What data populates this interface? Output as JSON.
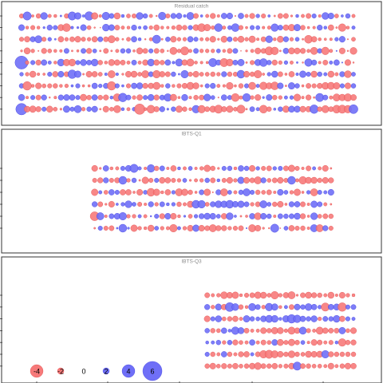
{
  "chart_data": {
    "type": "scatter",
    "description_kind": "bubble residual plot",
    "colors": {
      "positive": "#6f6ff7",
      "negative": "#f77a7a",
      "stroke_positive": "#4040e0",
      "stroke_negative": "#e05050"
    },
    "legend": {
      "placement": "bottom-left",
      "entries": [
        {
          "label": "-4",
          "value": -4
        },
        {
          "label": "-2",
          "value": -2
        },
        {
          "label": "0",
          "value": 0
        },
        {
          "label": "2",
          "value": 2
        },
        {
          "label": "4",
          "value": 4
        },
        {
          "label": "6",
          "value": 6
        }
      ]
    },
    "panels": [
      {
        "title": "Residual catch",
        "year_start": 1,
        "year_end": 60,
        "ages": 9,
        "residuals": [
          [
            -1.4,
            2.6,
            -0.8,
            -1.5,
            2.2,
            -1.1,
            -1.0,
            0.6,
            -1.5,
            2.6,
            2.1,
            0.8,
            2.7,
            -2.1,
            -0.9,
            2.4,
            1.6,
            -2.0,
            1.0,
            -1.3,
            -1.4,
            2.2,
            1.5,
            -1.1,
            -0.5,
            2.4,
            -1.4,
            1.7,
            1.8,
            0.9,
            2.3,
            -1.6,
            0.8,
            -1.1,
            -1.7,
            -0.9,
            1.8,
            1.9,
            -0.4,
            1.8,
            -1.1,
            -1.7,
            1.2,
            -1.4,
            0.8,
            -0.6,
            -1.6,
            -1.6,
            -0.7,
            1.0,
            -1.1,
            -1.6,
            1.4,
            -0.9,
            2.2,
            1.9,
            -1.3,
            0.8,
            1.5,
            -1.1
          ],
          [
            1.9,
            -1.0,
            -1.4,
            -1.0,
            0.7,
            1.7,
            1.4,
            -2.0,
            -2.5,
            0.9,
            0.7,
            1.9,
            -1.3,
            -0.5,
            -0.3,
            2.2,
            1.9,
            -1.6,
            -1.1,
            -1.0,
            1.7,
            0.9,
            1.3,
            -1.2,
            -1.8,
            -1.0,
            -0.9,
            -1.2,
            -1.8,
            -1.5,
            1.4,
            -1.9,
            -2.5,
            -2.1,
            -1.2,
            2.5,
            -1.1,
            1.3,
            2.5,
            -1.4,
            -0.8,
            1.4,
            1.3,
            -0.9,
            -1.1,
            2.4,
            1.6,
            -1.8,
            -2.1,
            2.1,
            -1.5,
            -0.8,
            -0.9,
            1.7,
            1.0,
            -1.8,
            -0.6,
            -2.4,
            -1.0,
            1.1
          ],
          [
            -1.4,
            -1.8,
            1.7,
            2.3,
            -1.4,
            1.2,
            0.6,
            -1.8,
            -1.2,
            -1.6,
            -1.9,
            -1.4,
            -1.2,
            -1.8,
            1.6,
            -1.6,
            -2.3,
            -1.2,
            -0.6,
            -1.3,
            1.8,
            1.0,
            -0.5,
            -1.1,
            2.6,
            -0.6,
            1.5,
            -1.9,
            -1.2,
            -1.2,
            1.8,
            1.4,
            -1.1,
            -1.2,
            -1.9,
            -0.7,
            -2.0,
            1.6,
            -1.4,
            -2.0,
            -1.2,
            -2.1,
            -0.9,
            -1.6,
            2.2,
            -1.0,
            -2.0,
            1.7,
            -1.2,
            1.3,
            -0.6,
            -2.5,
            -1.8,
            -1.0,
            -0.8,
            -0.9,
            1.2,
            1.9,
            -0.4,
            -1.3
          ],
          [
            -0.7,
            -2.0,
            -1.2,
            -0.4,
            -1.7,
            -1.3,
            -1.0,
            -0.9,
            1.6,
            -0.6,
            -0.8,
            1.6,
            -1.7,
            1.3,
            -0.6,
            -1.6,
            -0.6,
            -1.1,
            1.5,
            1.5,
            -0.8,
            -2.0,
            -1.6,
            1.4,
            -1.6,
            -1.3,
            -0.5,
            -2.3,
            -1.2,
            -2.6,
            -1.1,
            1.6,
            -1.2,
            -1.2,
            -1.2,
            1.3,
            -1.0,
            -1.6,
            1.6,
            -0.3,
            -0.7,
            -1.1,
            -1.9,
            -1.6,
            -2.6,
            -2.4,
            -0.6,
            1.8,
            -2.0,
            -1.9,
            -1.7,
            -1.1,
            -2.3,
            1.5,
            -2.4,
            -1.1,
            0.4,
            -1.9,
            -0.5,
            -2.2
          ],
          [
            4.1,
            -1.2,
            1.4,
            -1.7,
            1.8,
            1.1,
            -1.0,
            2.2,
            -2.1,
            -2.2,
            1.4,
            2.0,
            1.6,
            2.2,
            -1.5,
            -1.0,
            -2.0,
            -1.8,
            -1.6,
            -1.1,
            1.6,
            -1.1,
            -1.8,
            2.2,
            -1.8,
            -1.5,
            1.8,
            0.9,
            2.3,
            -1.8,
            -2.3,
            -1.0,
            -0.9,
            -0.8,
            2.6,
            1.7,
            -2.6,
            -2.2,
            1.6,
            2.1,
            -0.6,
            -1.4,
            2.0,
            2.5,
            1.5,
            -1.7,
            -1.2,
            1.2,
            -1.1,
            0.6,
            -0.5,
            2.4,
            1.7,
            -0.9,
            -1.6,
            1.1,
            1.8,
            0.4,
            -1.9,
            -0.5
          ],
          [
            1.2,
            -1.2,
            -2.0,
            -0.9,
            -0.8,
            1.4,
            -1.8,
            1.9,
            -1.6,
            2.7,
            2.1,
            -0.6,
            -1.9,
            -1.8,
            -1.3,
            0.9,
            -2.3,
            0.9,
            -0.7,
            -1.9,
            -2.0,
            -1.3,
            -2.3,
            1.6,
            -2.4,
            -1.8,
            -1.6,
            1.5,
            0.6,
            2.4,
            -1.4,
            -1.9,
            -1.3,
            -1.3,
            -1.5,
            -1.2,
            1.7,
            -1.5,
            -1.4,
            2.5,
            -1.9,
            -1.5,
            -2.4,
            -0.8,
            1.2,
            2.0,
            -1.6,
            -0.8,
            -1.8,
            0.9,
            2.1,
            1.4,
            -2.0,
            1.5,
            1.1,
            -2.0,
            -1.1,
            1.7,
            -2.2,
            1.3
          ],
          [
            1.5,
            -2.7,
            -1.0,
            -1.9,
            -1.3,
            -1.4,
            -1.5,
            -1.0,
            -1.2,
            0.8,
            1.4,
            -0.8,
            -0.8,
            1.8,
            1.2,
            1.7,
            -2.7,
            1.4,
            0.8,
            -1.4,
            1.8,
            2.0,
            -1.7,
            -1.8,
            -2.3,
            -1.0,
            1.5,
            -1.0,
            -1.4,
            -1.7,
            -2.3,
            -2.0,
            -0.8,
            1.4,
            1.7,
            -1.1,
            -0.9,
            -2.2,
            -0.8,
            -1.5,
            1.4,
            -2.3,
            1.1,
            -2.4,
            -2.0,
            -2.5,
            1.9,
            -0.6,
            2.1,
            1.5,
            -0.8,
            -1.6,
            -1.4,
            -1.7,
            -2.2,
            -2.3,
            -2.1,
            1.4,
            -1.9,
            1.5
          ],
          [
            2.0,
            -0.9,
            1.4,
            -1.6,
            1.7,
            -0.5,
            -0.9,
            1.7,
            1.9,
            1.8,
            1.4,
            -2.1,
            -1.5,
            1.8,
            -1.5,
            -1.7,
            1.0,
            -2.4,
            2.7,
            1.6,
            -1.2,
            -1.8,
            1.4,
            2.0,
            -1.7,
            1.6,
            2.4,
            -2.1,
            -0.8,
            2.0,
            -0.9,
            -1.5,
            -1.6,
            2.2,
            1.3,
            -0.4,
            1.8,
            1.4,
            -2.5,
            -1.1,
            2.5,
            -1.2,
            -1.9,
            0.7,
            1.9,
            -1.5,
            -1.2,
            1.1,
            1.2,
            -2.2,
            -0.9,
            -1.7,
            -0.6,
            2.6,
            1.6,
            -1.1,
            -2.3,
            -2.1,
            -2.4,
            -1.9
          ],
          [
            3.6,
            -1.9,
            -2.1,
            -1.7,
            1.4,
            -2.0,
            -1.3,
            -0.7,
            2.1,
            1.4,
            2.3,
            -1.2,
            1.5,
            1.9,
            -0.6,
            -1.9,
            -1.3,
            -2.3,
            1.0,
            -1.1,
            1.2,
            -3.3,
            -1.0,
            -2.5,
            -1.7,
            1.7,
            0.7,
            1.5,
            -2.1,
            -1.5,
            -1.0,
            2.4,
            -2.4,
            -1.6,
            -2.0,
            -2.6,
            -1.7,
            -2.1,
            -1.3,
            -2.6,
            -0.6,
            1.6,
            1.1,
            -2.5,
            -1.5,
            0.8,
            1.5,
            -2.1,
            2.0,
            2.0,
            -1.9,
            -1.8,
            2.7,
            -1.5,
            -2.3,
            -1.6,
            -2.5,
            -2.6,
            -2.4,
            2.8
          ]
        ]
      },
      {
        "title": "IBTS-Q1",
        "year_start": 14,
        "year_end": 56,
        "ages": 6,
        "residuals": [
          [
            -1.9,
            -0.7,
            1.8,
            -1.0,
            -1.1,
            1.4,
            1.9,
            2.6,
            1.1,
            -0.9,
            2.4,
            -1.5,
            1.6,
            -0.9,
            -1.8,
            1.0,
            -1.1,
            1.3,
            -0.9,
            -1.2,
            -2.1,
            -1.5,
            -0.7,
            1.4,
            1.5,
            -1.0,
            1.8,
            1.5,
            -1.9,
            1.2,
            -1.4,
            -1.6,
            1.2,
            1.4,
            -1.6,
            -2.1,
            -1.4,
            -0.9,
            -1.6,
            1.1,
            -1.1,
            -1.9,
            -0.6
          ],
          [
            -1.4,
            -1.7,
            1.7,
            -1.4,
            -1.7,
            2.5,
            -1.2,
            1.5,
            -0.6,
            -2.1,
            -1.4,
            1.4,
            -1.9,
            -1.8,
            -1.4,
            -1.2,
            1.3,
            -0.7,
            -1.1,
            -1.2,
            1.5,
            -1.6,
            1.0,
            -1.4,
            -1.9,
            -1.2,
            2.1,
            -1.9,
            -1.6,
            -2.3,
            1.7,
            -1.3,
            -1.6,
            -1.9,
            -1.4,
            2.5,
            -1.1,
            -2.4,
            -2.0,
            -2.0,
            -1.5,
            -1.9,
            -1.7
          ],
          [
            -2.1,
            1.1,
            -1.3,
            1.8,
            1.4,
            -1.8,
            -1.8,
            -0.8,
            -1.9,
            1.3,
            -2.5,
            -2.1,
            -1.0,
            -1.8,
            1.2,
            -2.3,
            -2.1,
            -1.5,
            -0.8,
            1.6,
            -2.1,
            -0.4,
            1.7,
            -2.3,
            1.3,
            -1.1,
            1.5,
            2.3,
            1.4,
            -1.5,
            -1.3,
            -1.6,
            -0.9,
            1.9,
            1.3,
            -1.2,
            -2.1,
            -0.8,
            1.2,
            -2.3,
            1.4,
            1.1,
            1.9
          ],
          [
            1.7,
            -1.6,
            -0.7,
            -1.9,
            0.8,
            1.2,
            2.2,
            1.3,
            -1.4,
            -0.9,
            1.7,
            -1.2,
            1.6,
            1.0,
            1.2,
            -1.5,
            -1.1,
            -2.0,
            2.5,
            2.4,
            -1.3,
            1.7,
            2.2,
            2.1,
            2.5,
            1.9,
            2.1,
            1.6,
            -1.2,
            -1.6,
            2.3,
            1.3,
            -1.5,
            -1.9,
            -0.8,
            1.7,
            1.8,
            -1.6,
            -0.9,
            2.1,
            1.6,
            -1.1,
            -0.6
          ],
          [
            -2.8,
            2.3,
            -0.9,
            1.6,
            1.9,
            2.4,
            -1.2,
            -1.2,
            1.1,
            -1.1,
            0.5,
            1.4,
            -1.7,
            1.9,
            -1.9,
            -1.0,
            0.7,
            -1.3,
            1.2,
            1.7,
            2.0,
            1.9,
            1.3,
            -1.8,
            2.2,
            0.8,
            -0.6,
            -0.8,
            1.8,
            -2.2,
            1.9,
            1.5,
            -0.9,
            1.6,
            1.5,
            1.6,
            2.0,
            -1.7,
            -0.8,
            2.2,
            -1.3,
            -1.6,
            -1.5
          ],
          [
            -0.6,
            1.4,
            -1.4,
            -1.6,
            0.6,
            2.5,
            0.7,
            -2.1,
            -1.2,
            -1.0,
            -2.0,
            1.3,
            -1.2,
            -1.1,
            -2.4,
            1.1,
            -1.2,
            -1.9,
            2.1,
            -1.9,
            -1.6,
            -2.3,
            -1.7,
            -1.7,
            -1.2,
            -1.4,
            -1.6,
            0.4,
            -2.3,
            -1.9,
            -0.7,
            -0.5,
            2.6,
            -0.3,
            1.3,
            -1.8,
            -1.4,
            -1.5,
            -0.9,
            2.3,
            -2.3,
            1.7,
            -1.4
          ]
        ]
      },
      {
        "title": "IBTS-Q3",
        "year_start": 34,
        "year_end": 60,
        "ages": 7,
        "residuals": [
          [
            -1.6,
            -1.1,
            -1.2,
            -2.2,
            -1.9,
            -2.1,
            -1.0,
            -1.4,
            -1.6,
            -2.1,
            -2.0,
            -1.3,
            -2.4,
            -1.2,
            -1.8,
            -2.3,
            -0.7,
            -1.6,
            -2.0,
            -1.7,
            -1.5,
            -1.1,
            -2.0,
            -0.9,
            -1.9,
            -1.2,
            -1.0
          ],
          [
            1.7,
            -1.2,
            2.0,
            -1.8,
            2.8,
            2.2,
            -1.5,
            -1.0,
            2.3,
            1.6,
            -1.2,
            2.4,
            2.1,
            -1.0,
            1.1,
            -1.6,
            1.9,
            1.5,
            2.2,
            1.8,
            1.2,
            -2.6,
            1.8,
            2.0,
            -2.7,
            1.4,
            1.6
          ],
          [
            -1.9,
            1.4,
            2.0,
            -1.3,
            -1.5,
            -1.8,
            -1.1,
            2.1,
            1.5,
            1.3,
            1.9,
            2.3,
            2.2,
            1.0,
            2.1,
            2.7,
            2.4,
            1.8,
            1.5,
            2.0,
            -1.2,
            1.6,
            1.5,
            2.2,
            -1.8,
            1.4,
            1.1
          ],
          [
            1.5,
            -1.5,
            -1.3,
            1.8,
            1.0,
            2.4,
            2.0,
            -1.6,
            -1.1,
            -1.1,
            -1.9,
            -1.5,
            -2.1,
            -2.0,
            -1.2,
            -2.3,
            -1.8,
            2.3,
            -1.4,
            -1.1,
            -2.3,
            -1.8,
            -1.6,
            -1.6,
            2.1,
            -1.3,
            -1.9
          ],
          [
            1.0,
            1.1,
            1.5,
            -1.2,
            1.5,
            -1.7,
            -1.3,
            -1.1,
            1.8,
            -1.1,
            -1.6,
            -1.3,
            1.9,
            -2.0,
            -1.4,
            -2.1,
            -1.5,
            1.3,
            -0.9,
            -1.9,
            -1.6,
            -1.1,
            -1.4,
            1.0,
            -2.4,
            -1.5,
            -1.7
          ],
          [
            1.4,
            -1.5,
            -1.1,
            1.8,
            -1.5,
            -1.1,
            -1.7,
            -1.8,
            1.1,
            -1.6,
            -2.4,
            -2.6,
            -2.3,
            -1.9,
            -1.5,
            -2.2,
            -1.5,
            -1.3,
            -2.0,
            -1.9,
            -2.0,
            2.4,
            -1.7,
            -1.5,
            -1.5,
            -1.5,
            -1.5
          ],
          [
            -1.5,
            -1.9,
            -1.3,
            -1.7,
            -1.4,
            -1.8,
            -1.3,
            -1.5,
            -1.9,
            -2.2,
            -1.6,
            -1.5,
            -1.8,
            -1.2,
            -1.4,
            -1.9,
            2.6,
            -1.6,
            -1.5,
            -1.3,
            -1.3,
            -1.1,
            -1.9,
            -1.1,
            -1.5,
            -1.9,
            -1.8
          ]
        ]
      }
    ]
  }
}
